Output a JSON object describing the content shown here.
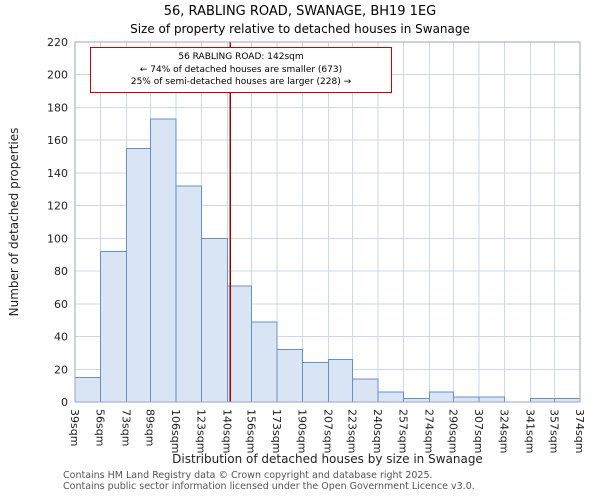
{
  "title": {
    "line1": "56, RABLING ROAD, SWANAGE, BH19 1EG",
    "line2": "Size of property relative to detached houses in Swanage"
  },
  "annotation": {
    "lines": [
      "56 RABLING ROAD: 142sqm",
      "← 74% of detached houses are smaller (673)",
      "25% of semi-detached houses are larger (228) →"
    ]
  },
  "footer": {
    "lines": [
      "Contains HM Land Registry data © Crown copyright and database right 2025.",
      "Contains public sector information licensed under the Open Government Licence v3.0."
    ]
  },
  "chart_data": {
    "type": "bar",
    "title": "56, RABLING ROAD, SWANAGE, BH19 1EG",
    "subtitle": "Size of property relative to detached houses in Swanage",
    "xlabel": "Distribution of detached houses by size in Swanage",
    "ylabel": "Number of detached properties",
    "bin_edges": [
      39,
      56,
      73,
      89,
      106,
      123,
      140,
      156,
      173,
      190,
      207,
      223,
      240,
      257,
      274,
      290,
      307,
      324,
      341,
      357,
      374
    ],
    "tick_label_suffix": "sqm",
    "values": [
      15,
      92,
      155,
      173,
      132,
      100,
      71,
      49,
      32,
      24,
      26,
      14,
      6,
      2,
      6,
      3,
      3,
      0,
      2,
      2
    ],
    "ylim": [
      0,
      220
    ],
    "ytick_step": 20,
    "grid": true,
    "legend": "none",
    "marker_value": 142,
    "colors": {
      "bar_fill": "#d9e5f4",
      "bar_border": "#6590c8",
      "grid": "#ccd8ea",
      "axis": "#9aa7bd",
      "marker": "#990000",
      "annotation_border": "#cc0000",
      "text": "#222222",
      "footer_text": "#555555"
    }
  }
}
